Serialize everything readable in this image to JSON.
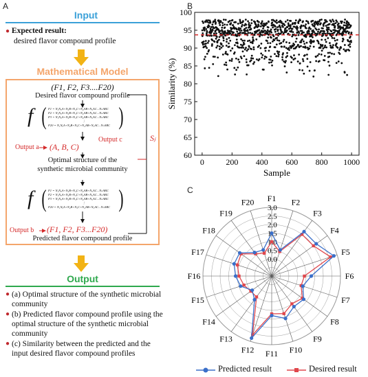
{
  "colors": {
    "input_title": "#3aa0d8",
    "model_title": "#f4a56b",
    "output_title": "#2ea84d",
    "arrow": "#f2b315",
    "box_border": "#f4a56b",
    "red": "#d42a2a",
    "predicted": "#3a6fc9",
    "desired": "#e0474c",
    "scatter_dot": "#111111"
  },
  "panel_a": {
    "letter": "A",
    "input_title": "Input",
    "expected_label": "Expected result:",
    "expected_desc": "desired flavor compound profile",
    "model_title": "Mathematical Model",
    "f_tuple": "(F1, F2, F3....F20)",
    "desired_caption": "Desired flavor compound profile",
    "f_symbol": "f",
    "eq_lines_1": [
      "F1 = N₁NₐA+N₂B+N₃C+N₄AB+N₅AC...NₙABC",
      "F2 = N₁NₐA+N₂B+N₃C+N₄AB+N₅AC...NₙABC",
      "F3 = N₁NₐA+N₂B+N₃C+N₄AB+N₅AC...NₙABC",
      "⋮",
      "F20 = N₁NₐA+N₂B+N₃C+N₄AB+N₅AC...NₙABC"
    ],
    "output_a_label": "Output a",
    "output_a_value": "(A, B, C)",
    "output_c_label": "Output c",
    "output_c_value": "Sⱼ",
    "optimal_caption_1": "Optimal structure of the",
    "optimal_caption_2": "synthetic microbial community",
    "eq_lines_2": [
      "F1 = N₁NₐA+N₂B+N₃C+N₄AB+N₅AC...NₙABC",
      "F2 = N₁NₐA+N₂B+N₃C+N₄AB+N₅AC...NₙABC",
      "F3 = N₁NₐA+N₂B+N₃C+N₄AB+N₅AC...NₙABC",
      "⋮",
      "F20 = N₁NₐA+N₂B+N₃C+N₄AB+N₅AC...NₙABC"
    ],
    "output_b_label": "Output b",
    "output_b_value": "(F1, F2, F3...F20)",
    "predicted_caption": "Predicted flavor compound profile",
    "output_title": "Output",
    "outputs": [
      "(a) Optimal structure of the synthetic microbial community",
      "(b) Predicted flavor compound profile using the optimal structure of the synthetic microbial community",
      "(c) Similarity between the predicted and the input desired flavor compound profiles"
    ]
  },
  "chart_data": [
    {
      "panel": "B",
      "type": "scatter",
      "xlabel": "Sample",
      "ylabel": "Similarity (%)",
      "xlim": [
        -50,
        1050
      ],
      "ylim": [
        60,
        100
      ],
      "xticks": [
        0,
        200,
        400,
        600,
        800,
        1000
      ],
      "yticks": [
        60,
        65,
        70,
        75,
        80,
        85,
        90,
        95,
        100
      ],
      "threshold": 93.7,
      "n_points": 1000,
      "points_note": "approx. 1000 samples; most between 88 and 98, min around 82"
    },
    {
      "panel": "C",
      "type": "radar",
      "categories": [
        "F1",
        "F2",
        "F3",
        "F4",
        "F5",
        "F6",
        "F7",
        "F8",
        "F9",
        "F10",
        "F11",
        "F12",
        "F13",
        "F14",
        "F15",
        "F16",
        "F17",
        "F18",
        "F19",
        "F20"
      ],
      "rticks": [
        0.0,
        0.5,
        1.0,
        1.5,
        2.0,
        2.5,
        3.0
      ],
      "rmin": -1.0,
      "rmax": 3.0,
      "series": [
        {
          "name": "Predicted result",
          "values": [
            1.5,
            0.6,
            2.2,
            2.2,
            2.8,
            1.3,
            0.9,
            1.3,
            1.2,
            1.6,
            1.3,
            2.8,
            0.7,
            0.4,
            0.9,
            1.1,
            1.3,
            1.3,
            0.7,
            0.6
          ]
        },
        {
          "name": "Desired result",
          "values": [
            1.0,
            0.5,
            2.0,
            2.0,
            2.6,
            0.9,
            0.8,
            1.2,
            1.0,
            1.3,
            1.2,
            2.6,
            0.5,
            0.5,
            0.7,
            0.9,
            1.1,
            1.2,
            0.6,
            0.4
          ]
        }
      ]
    }
  ],
  "panel_b_letter": "B",
  "panel_c_letter": "C",
  "legend": {
    "predicted": "Predicted result",
    "desired": "Desired result"
  }
}
